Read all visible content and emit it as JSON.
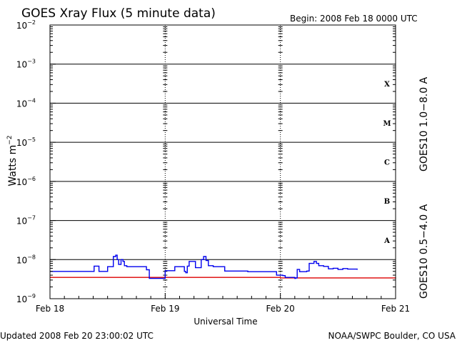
{
  "header": {
    "title": "GOES Xray Flux (5 minute data)",
    "begin": "Begin:  2008 Feb 18 0000 UTC"
  },
  "footer": {
    "updated": "Updated 2008 Feb 20 23:00:02 UTC",
    "credit": "NOAA/SWPC Boulder, CO USA"
  },
  "chart_data": {
    "type": "line",
    "title": "GOES Xray Flux (5 minute data)",
    "xlabel": "Universal Time",
    "ylabel": "Watts m",
    "ylabel_sup": "−2",
    "yscale": "log",
    "ylim": [
      1e-09,
      0.01
    ],
    "xlim": [
      0,
      72
    ],
    "x_unit": "hours since 2008 Feb 18 0000 UTC",
    "x_ticks": [
      {
        "x": 0,
        "label": "Feb 18"
      },
      {
        "x": 24,
        "label": "Feb 19"
      },
      {
        "x": 48,
        "label": "Feb 20"
      },
      {
        "x": 72,
        "label": "Feb 21"
      }
    ],
    "y_ticks": [
      {
        "exp": -9,
        "label": "10",
        "sup": "−9"
      },
      {
        "exp": -8,
        "label": "10",
        "sup": "−8"
      },
      {
        "exp": -7,
        "label": "10",
        "sup": "−7"
      },
      {
        "exp": -6,
        "label": "10",
        "sup": "−6"
      },
      {
        "exp": -5,
        "label": "10",
        "sup": "−5"
      },
      {
        "exp": -4,
        "label": "10",
        "sup": "−4"
      },
      {
        "exp": -3,
        "label": "10",
        "sup": "−3"
      },
      {
        "exp": -2,
        "label": "10",
        "sup": "−2"
      }
    ],
    "flare_classes": [
      {
        "label": "A",
        "exp": -7.5
      },
      {
        "label": "B",
        "exp": -6.5
      },
      {
        "label": "C",
        "exp": -5.5
      },
      {
        "label": "M",
        "exp": -4.5
      },
      {
        "label": "X",
        "exp": -3.5
      }
    ],
    "series": [
      {
        "name": "GOES10 1.0−8.0 A",
        "color": "#dd0000",
        "points": [
          [
            0,
            3.5e-09
          ],
          [
            24,
            3.5e-09
          ],
          [
            48,
            3.4e-09
          ],
          [
            72,
            3.5e-09
          ]
        ]
      },
      {
        "name": "GOES10 0.5−4.0 A",
        "color": "#0000ee",
        "points": [
          [
            0,
            5e-09
          ],
          [
            9.0,
            5e-09
          ],
          [
            9.2,
            6.8e-09
          ],
          [
            10.0,
            6.8e-09
          ],
          [
            10.2,
            5e-09
          ],
          [
            11.8,
            5e-09
          ],
          [
            12.0,
            6.6e-09
          ],
          [
            13.0,
            6.6e-09
          ],
          [
            13.2,
            1.2e-08
          ],
          [
            13.7,
            1.3e-08
          ],
          [
            14.0,
            1e-08
          ],
          [
            14.3,
            7.5e-09
          ],
          [
            14.8,
            1e-08
          ],
          [
            15.2,
            9e-09
          ],
          [
            15.5,
            7e-09
          ],
          [
            16.0,
            6.6e-09
          ],
          [
            20.0,
            6.6e-09
          ],
          [
            20.1,
            5.5e-09
          ],
          [
            20.6,
            5.5e-09
          ],
          [
            20.7,
            3.3e-09
          ],
          [
            22.0,
            3.3e-09
          ],
          [
            23.8,
            3.3e-09
          ],
          [
            24.0,
            5.2e-09
          ],
          [
            25.8,
            5.2e-09
          ],
          [
            26.0,
            6.6e-09
          ],
          [
            27.8,
            6.6e-09
          ],
          [
            28.0,
            5e-09
          ],
          [
            28.3,
            4.6e-09
          ],
          [
            28.6,
            6.8e-09
          ],
          [
            29.0,
            9e-09
          ],
          [
            30.0,
            9e-09
          ],
          [
            30.3,
            6.2e-09
          ],
          [
            31.0,
            6.2e-09
          ],
          [
            31.5,
            1e-08
          ],
          [
            32.0,
            1.2e-08
          ],
          [
            32.5,
            9.5e-09
          ],
          [
            33.0,
            7e-09
          ],
          [
            34.0,
            6.6e-09
          ],
          [
            36.0,
            6.6e-09
          ],
          [
            36.4,
            5.1e-09
          ],
          [
            41.0,
            5.1e-09
          ],
          [
            41.2,
            4.9e-09
          ],
          [
            47.0,
            4.9e-09
          ],
          [
            47.2,
            4e-09
          ],
          [
            48.5,
            3.9e-09
          ],
          [
            49.0,
            3.5e-09
          ],
          [
            51.0,
            3.3e-09
          ],
          [
            51.2,
            3.4e-09
          ],
          [
            51.5,
            5.6e-09
          ],
          [
            52.0,
            4.9e-09
          ],
          [
            53.5,
            5.1e-09
          ],
          [
            54.0,
            8e-09
          ],
          [
            55.0,
            9e-09
          ],
          [
            55.5,
            8e-09
          ],
          [
            56.0,
            7e-09
          ],
          [
            57.0,
            6.7e-09
          ],
          [
            58.0,
            5.8e-09
          ],
          [
            59.0,
            6e-09
          ],
          [
            60.0,
            5.6e-09
          ],
          [
            61.0,
            5.9e-09
          ],
          [
            62.0,
            5.7e-09
          ],
          [
            64.0,
            5.5e-09
          ]
        ]
      }
    ],
    "grid": "horizontal decade lines, dashed day separators"
  }
}
